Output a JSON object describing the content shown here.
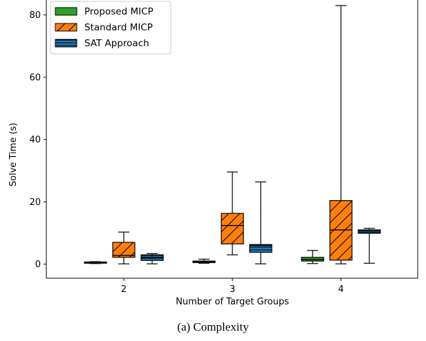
{
  "chart_data": {
    "type": "boxplot",
    "xlabel": "Number of Target Groups",
    "ylabel": "Solve Time (s)",
    "categories": [
      "2",
      "3",
      "4"
    ],
    "ylim": [
      -4.5,
      87
    ],
    "yticks": [
      0,
      20,
      40,
      60,
      80
    ],
    "grid": false,
    "legend_position": "top-left",
    "series": [
      {
        "name": "Proposed MICP",
        "color": "#2ca02c",
        "hatch": "none",
        "boxes": [
          {
            "whisker_low": 0.2,
            "q1": 0.3,
            "median": 0.5,
            "q3": 0.7,
            "whisker_high": 0.8
          },
          {
            "whisker_low": 0.3,
            "q1": 0.5,
            "median": 0.8,
            "q3": 1.0,
            "whisker_high": 1.6
          },
          {
            "whisker_low": 0.2,
            "q1": 1.0,
            "median": 1.5,
            "q3": 2.2,
            "whisker_high": 4.4
          }
        ]
      },
      {
        "name": "Standard MICP",
        "color": "#ff7f0e",
        "hatch": "diagonal",
        "boxes": [
          {
            "whisker_low": 0.1,
            "q1": 2.2,
            "median": 2.8,
            "q3": 7.0,
            "whisker_high": 10.3
          },
          {
            "whisker_low": 3.0,
            "q1": 6.5,
            "median": 12.4,
            "q3": 16.3,
            "whisker_high": 29.6
          },
          {
            "whisker_low": 0.1,
            "q1": 1.3,
            "median": 11.0,
            "q3": 20.4,
            "whisker_high": 83.0
          }
        ]
      },
      {
        "name": "SAT Approach",
        "color": "#1f77b4",
        "hatch": "horizontal",
        "boxes": [
          {
            "whisker_low": 0.1,
            "q1": 1.2,
            "median": 2.2,
            "q3": 3.0,
            "whisker_high": 3.4
          },
          {
            "whisker_low": 0.1,
            "q1": 3.8,
            "median": 6.0,
            "q3": 6.3,
            "whisker_high": 26.4
          },
          {
            "whisker_low": 0.3,
            "q1": 9.9,
            "median": 10.3,
            "q3": 11.0,
            "whisker_high": 11.5
          }
        ]
      }
    ]
  },
  "caption": "(a) Complexity"
}
